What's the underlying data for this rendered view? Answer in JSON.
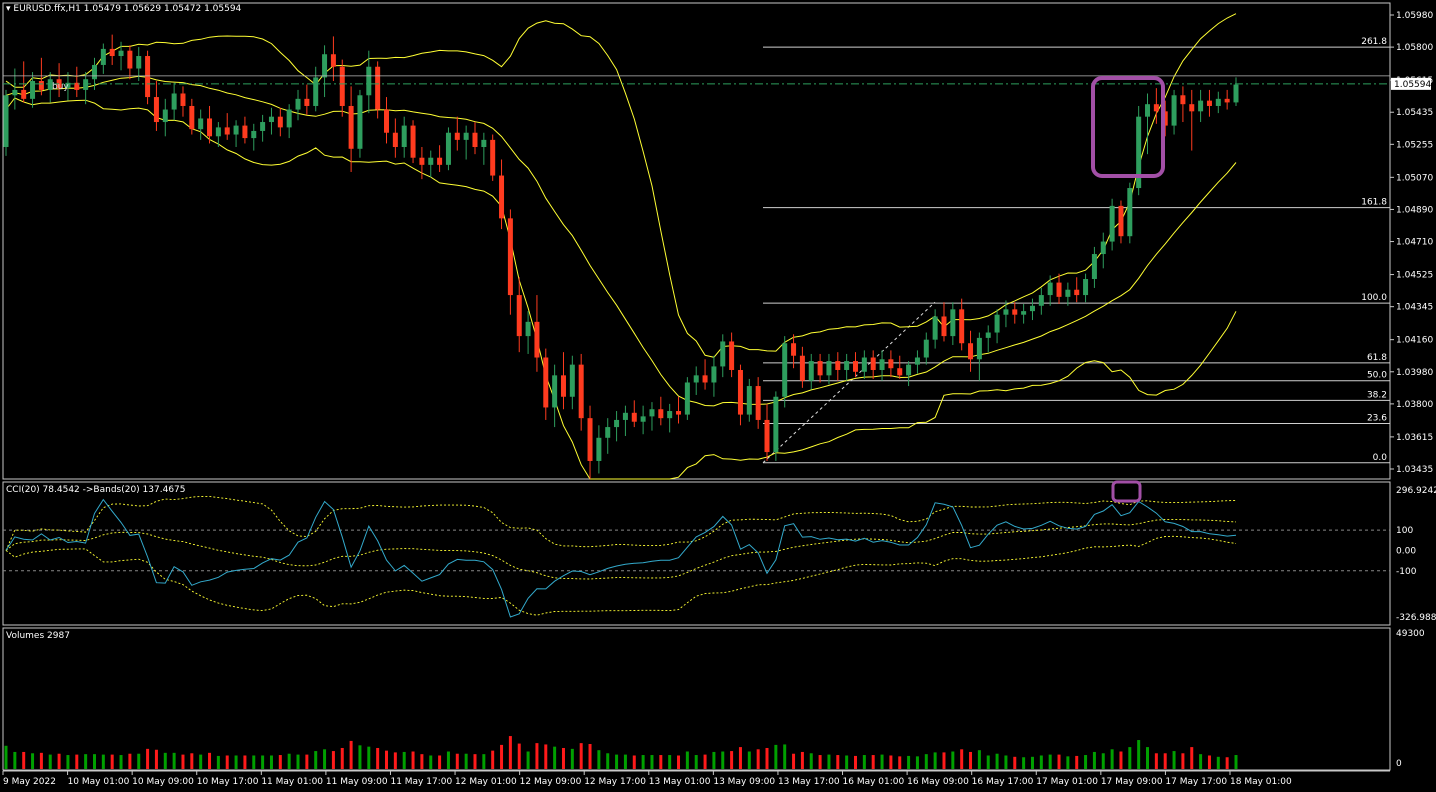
{
  "chart_data": [
    {
      "type": "candlestick",
      "panel": "price",
      "title": "EURUSD.ffx,H1",
      "ohlc_text": [
        "1.05479",
        "1.05629",
        "1.05472",
        "1.05594"
      ],
      "label_mark": "buy",
      "price_axis": [
        "1.05980",
        "1.05800",
        "1.05615",
        "1.05435",
        "1.05255",
        "1.05070",
        "1.04890",
        "1.04710",
        "1.04525",
        "1.04345",
        "1.04160",
        "1.03980",
        "1.03800",
        "1.03615",
        "1.03435"
      ],
      "current_price": "1.05594",
      "ylim": [
        1.03435,
        1.0598
      ],
      "fib_levels": [
        {
          "label": "261.8",
          "price": 1.058
        },
        {
          "label": "161.8",
          "price": 1.049
        },
        {
          "label": "100.0",
          "price": 1.04365
        },
        {
          "label": "61.8",
          "price": 1.0403
        },
        {
          "label": "50.0",
          "price": 1.0393
        },
        {
          "label": "38.2",
          "price": 1.0382
        },
        {
          "label": "23.6",
          "price": 1.0369
        },
        {
          "label": "0.0",
          "price": 1.0347
        }
      ],
      "candles": [
        [
          1.0524,
          1.0556,
          1.0519,
          1.0553
        ],
        [
          1.0553,
          1.0568,
          1.0545,
          1.0556
        ],
        [
          1.0556,
          1.0572,
          1.0549,
          1.0551
        ],
        [
          1.0551,
          1.0566,
          1.0546,
          1.0561
        ],
        [
          1.0561,
          1.0574,
          1.0553,
          1.0556
        ],
        [
          1.0556,
          1.0566,
          1.0549,
          1.0562
        ],
        [
          1.0562,
          1.0571,
          1.0552,
          1.0557
        ],
        [
          1.0557,
          1.0566,
          1.055,
          1.056
        ],
        [
          1.056,
          1.0569,
          1.0552,
          1.0556
        ],
        [
          1.0556,
          1.0566,
          1.0548,
          1.0562
        ],
        [
          1.0562,
          1.0574,
          1.0556,
          1.057
        ],
        [
          1.057,
          1.0582,
          1.0565,
          1.0579
        ],
        [
          1.0579,
          1.0587,
          1.057,
          1.0575
        ],
        [
          1.0575,
          1.0583,
          1.0567,
          1.0578
        ],
        [
          1.0578,
          1.0581,
          1.0562,
          1.0568
        ],
        [
          1.0568,
          1.058,
          1.0561,
          1.0575
        ],
        [
          1.0575,
          1.0578,
          1.0548,
          1.0552
        ],
        [
          1.0552,
          1.0561,
          1.0533,
          1.0538
        ],
        [
          1.0538,
          1.0551,
          1.053,
          1.0545
        ],
        [
          1.0545,
          1.056,
          1.0539,
          1.0554
        ],
        [
          1.0554,
          1.0558,
          1.0541,
          1.0547
        ],
        [
          1.0547,
          1.0551,
          1.0531,
          1.0534
        ],
        [
          1.0534,
          1.0545,
          1.0528,
          1.054
        ],
        [
          1.054,
          1.0547,
          1.0526,
          1.053
        ],
        [
          1.053,
          1.0538,
          1.0524,
          1.0535
        ],
        [
          1.0535,
          1.0543,
          1.0528,
          1.0531
        ],
        [
          1.0531,
          1.0539,
          1.0524,
          1.0536
        ],
        [
          1.0536,
          1.0541,
          1.0526,
          1.0529
        ],
        [
          1.0529,
          1.0537,
          1.0522,
          1.0533
        ],
        [
          1.0533,
          1.0542,
          1.0527,
          1.0538
        ],
        [
          1.0538,
          1.0546,
          1.0531,
          1.0541
        ],
        [
          1.0541,
          1.0546,
          1.053,
          1.0535
        ],
        [
          1.0535,
          1.0548,
          1.0529,
          1.0545
        ],
        [
          1.0545,
          1.0556,
          1.0539,
          1.0551
        ],
        [
          1.0551,
          1.0559,
          1.0542,
          1.0547
        ],
        [
          1.0547,
          1.0569,
          1.0544,
          1.0563
        ],
        [
          1.0563,
          1.0581,
          1.0552,
          1.0576
        ],
        [
          1.0576,
          1.0586,
          1.0561,
          1.0569
        ],
        [
          1.0569,
          1.0573,
          1.0541,
          1.0547
        ],
        [
          1.0547,
          1.0558,
          1.051,
          1.0523
        ],
        [
          1.0523,
          1.0556,
          1.0518,
          1.0553
        ],
        [
          1.0553,
          1.0578,
          1.0543,
          1.0569
        ],
        [
          1.0569,
          1.0572,
          1.054,
          1.0545
        ],
        [
          1.0545,
          1.0552,
          1.0526,
          1.0532
        ],
        [
          1.0532,
          1.054,
          1.0518,
          1.0524
        ],
        [
          1.0524,
          1.0541,
          1.0518,
          1.0536
        ],
        [
          1.0536,
          1.0539,
          1.0515,
          1.0518
        ],
        [
          1.0518,
          1.0524,
          1.0506,
          1.0514
        ],
        [
          1.0514,
          1.0522,
          1.0507,
          1.0518
        ],
        [
          1.0518,
          1.0525,
          1.051,
          1.0514
        ],
        [
          1.0514,
          1.0535,
          1.0511,
          1.0532
        ],
        [
          1.0532,
          1.0541,
          1.0522,
          1.0528
        ],
        [
          1.0528,
          1.0536,
          1.0517,
          1.0532
        ],
        [
          1.0532,
          1.0538,
          1.052,
          1.0524
        ],
        [
          1.0524,
          1.0532,
          1.0514,
          1.0528
        ],
        [
          1.0528,
          1.0531,
          1.0505,
          1.0508
        ],
        [
          1.0508,
          1.0517,
          1.0478,
          1.0484
        ],
        [
          1.0484,
          1.0489,
          1.043,
          1.0441
        ],
        [
          1.0441,
          1.0451,
          1.0409,
          1.0418
        ],
        [
          1.0418,
          1.0432,
          1.0408,
          1.0426
        ],
        [
          1.0426,
          1.0441,
          1.0398,
          1.0406
        ],
        [
          1.0406,
          1.0411,
          1.0371,
          1.0378
        ],
        [
          1.0378,
          1.0402,
          1.0367,
          1.0396
        ],
        [
          1.0396,
          1.0409,
          1.0377,
          1.0384
        ],
        [
          1.0384,
          1.0407,
          1.0377,
          1.0402
        ],
        [
          1.0402,
          1.0408,
          1.0365,
          1.0372
        ],
        [
          1.0372,
          1.0379,
          1.0338,
          1.0348
        ],
        [
          1.0348,
          1.0368,
          1.0341,
          1.0361
        ],
        [
          1.0361,
          1.0372,
          1.0352,
          1.0367
        ],
        [
          1.0367,
          1.0376,
          1.0359,
          1.0371
        ],
        [
          1.0371,
          1.0379,
          1.0362,
          1.0375
        ],
        [
          1.0375,
          1.0382,
          1.0367,
          1.037
        ],
        [
          1.037,
          1.0379,
          1.0363,
          1.0373
        ],
        [
          1.0373,
          1.0381,
          1.0365,
          1.0377
        ],
        [
          1.0377,
          1.0384,
          1.0368,
          1.0372
        ],
        [
          1.0372,
          1.038,
          1.0364,
          1.0376
        ],
        [
          1.0376,
          1.0384,
          1.0369,
          1.0374
        ],
        [
          1.0374,
          1.0395,
          1.0371,
          1.0392
        ],
        [
          1.0392,
          1.0401,
          1.0385,
          1.0396
        ],
        [
          1.0396,
          1.0405,
          1.0388,
          1.0392
        ],
        [
          1.0392,
          1.0407,
          1.0384,
          1.0401
        ],
        [
          1.0401,
          1.0419,
          1.0395,
          1.0415
        ],
        [
          1.0415,
          1.042,
          1.0395,
          1.0399
        ],
        [
          1.0399,
          1.0402,
          1.0368,
          1.0374
        ],
        [
          1.0374,
          1.0394,
          1.037,
          1.039
        ],
        [
          1.039,
          1.0395,
          1.0366,
          1.0371
        ],
        [
          1.0371,
          1.038,
          1.0348,
          1.0353
        ],
        [
          1.0353,
          1.0387,
          1.0348,
          1.0384
        ],
        [
          1.0384,
          1.0418,
          1.0378,
          1.0414
        ],
        [
          1.0414,
          1.0419,
          1.04,
          1.0407
        ],
        [
          1.0407,
          1.0412,
          1.0389,
          1.0393
        ],
        [
          1.0393,
          1.0408,
          1.0388,
          1.0404
        ],
        [
          1.0404,
          1.0408,
          1.0392,
          1.0396
        ],
        [
          1.0396,
          1.0408,
          1.0391,
          1.0404
        ],
        [
          1.0404,
          1.0409,
          1.0393,
          1.0399
        ],
        [
          1.0399,
          1.0408,
          1.0393,
          1.0404
        ],
        [
          1.0404,
          1.0409,
          1.0395,
          1.0398
        ],
        [
          1.0398,
          1.041,
          1.0394,
          1.0406
        ],
        [
          1.0406,
          1.041,
          1.0394,
          1.0399
        ],
        [
          1.0399,
          1.041,
          1.0393,
          1.0405
        ],
        [
          1.0405,
          1.041,
          1.0395,
          1.04
        ],
        [
          1.04,
          1.0407,
          1.0394,
          1.0396
        ],
        [
          1.0396,
          1.0404,
          1.039,
          1.0402
        ],
        [
          1.0402,
          1.041,
          1.0397,
          1.0406
        ],
        [
          1.0406,
          1.042,
          1.0402,
          1.0416
        ],
        [
          1.0416,
          1.0433,
          1.0411,
          1.0429
        ],
        [
          1.0429,
          1.0437,
          1.0415,
          1.0418
        ],
        [
          1.0418,
          1.0437,
          1.0413,
          1.0433
        ],
        [
          1.0433,
          1.0439,
          1.041,
          1.0414
        ],
        [
          1.0414,
          1.0421,
          1.0398,
          1.0405
        ],
        [
          1.0405,
          1.042,
          1.0393,
          1.0417
        ],
        [
          1.0417,
          1.0424,
          1.0409,
          1.042
        ],
        [
          1.042,
          1.0433,
          1.0414,
          1.043
        ],
        [
          1.043,
          1.0438,
          1.0423,
          1.0433
        ],
        [
          1.0433,
          1.0437,
          1.0425,
          1.043
        ],
        [
          1.043,
          1.0436,
          1.0425,
          1.0432
        ],
        [
          1.0432,
          1.0439,
          1.0427,
          1.0435
        ],
        [
          1.0435,
          1.0445,
          1.043,
          1.0441
        ],
        [
          1.0441,
          1.0452,
          1.0435,
          1.0448
        ],
        [
          1.0448,
          1.0453,
          1.0436,
          1.044
        ],
        [
          1.044,
          1.0448,
          1.0435,
          1.0444
        ],
        [
          1.0444,
          1.0451,
          1.0437,
          1.0441
        ],
        [
          1.0441,
          1.0453,
          1.0437,
          1.045
        ],
        [
          1.045,
          1.0468,
          1.0445,
          1.0464
        ],
        [
          1.0464,
          1.0476,
          1.0456,
          1.0471
        ],
        [
          1.0471,
          1.0495,
          1.0466,
          1.0491
        ],
        [
          1.0491,
          1.0494,
          1.047,
          1.0474
        ],
        [
          1.0474,
          1.0504,
          1.047,
          1.0501
        ],
        [
          1.0501,
          1.0547,
          1.0497,
          1.0541
        ],
        [
          1.0541,
          1.0554,
          1.052,
          1.0548
        ],
        [
          1.0548,
          1.0557,
          1.0537,
          1.0544
        ],
        [
          1.0544,
          1.055,
          1.053,
          1.0536
        ],
        [
          1.0536,
          1.0556,
          1.0531,
          1.0553
        ],
        [
          1.0553,
          1.0558,
          1.0538,
          1.0548
        ],
        [
          1.0548,
          1.0556,
          1.0522,
          1.0544
        ],
        [
          1.0544,
          1.0556,
          1.0538,
          1.055
        ],
        [
          1.055,
          1.0556,
          1.0541,
          1.0547
        ],
        [
          1.0547,
          1.0555,
          1.0543,
          1.0551
        ],
        [
          1.0551,
          1.0556,
          1.0545,
          1.0549
        ],
        [
          1.0549,
          1.0563,
          1.0547,
          1.0559
        ]
      ]
    },
    {
      "type": "line",
      "panel": "indicator",
      "title": "CCI(20) 78.4542  ->Bands(20) 137.4675",
      "axis_labels": [
        "296.9242",
        "100",
        "0.00",
        "-100",
        "-326.9883"
      ],
      "ylim": [
        -326.9883,
        296.9242
      ]
    },
    {
      "type": "bar",
      "panel": "volume",
      "title": "Volumes 2987",
      "axis_labels": [
        "49300",
        "0"
      ],
      "ylim": [
        0,
        49300
      ]
    }
  ],
  "x_axis_labels": [
    "9 May 2022",
    "10 May 01:00",
    "10 May 09:00",
    "10 May 17:00",
    "11 May 01:00",
    "11 May 09:00",
    "11 May 17:00",
    "12 May 01:00",
    "12 May 09:00",
    "12 May 17:00",
    "13 May 01:00",
    "13 May 09:00",
    "13 May 17:00",
    "16 May 01:00",
    "16 May 09:00",
    "16 May 17:00",
    "17 May 01:00",
    "17 May 09:00",
    "17 May 17:00",
    "18 May 01:00"
  ],
  "colors": {
    "bull": "#2e9e5e",
    "bear": "#ff3b1f",
    "bands": "#ffff33",
    "cci": "#33aacc",
    "grid": "#c8c8c8",
    "highlight": "#a24fa6",
    "vol_up": "#00a000",
    "vol_down": "#ff1a1a",
    "bid_line": "#2e9e5e"
  }
}
